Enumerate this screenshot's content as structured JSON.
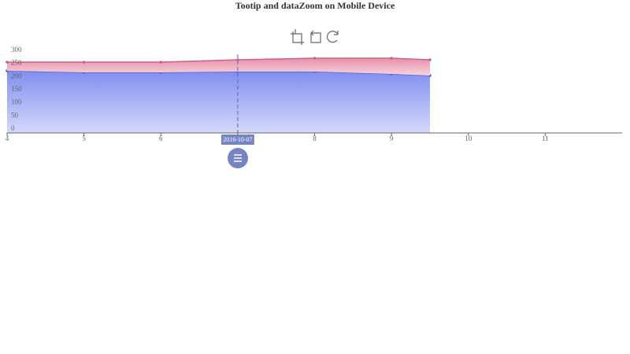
{
  "chart_data": {
    "type": "line",
    "title": "Tootip and dataZoom on Mobile Device",
    "x": [
      4,
      5,
      6,
      7,
      8,
      9,
      9.5
    ],
    "xlim": [
      4,
      12
    ],
    "xticks": [
      4,
      5,
      6,
      7,
      8,
      9,
      10,
      11
    ],
    "ylim": [
      0,
      300
    ],
    "yticks": [
      0,
      50,
      100,
      150,
      200,
      250,
      300
    ],
    "stacked": true,
    "series": [
      {
        "color": "#4a64d8",
        "values": [
          237,
          231,
          231,
          234,
          234,
          225,
          219
        ]
      },
      {
        "color": "#d2607f",
        "values": [
          33,
          39,
          39,
          45,
          51,
          60,
          60
        ]
      }
    ],
    "pointer": {
      "x": 7,
      "label": "2016-10-07"
    }
  }
}
